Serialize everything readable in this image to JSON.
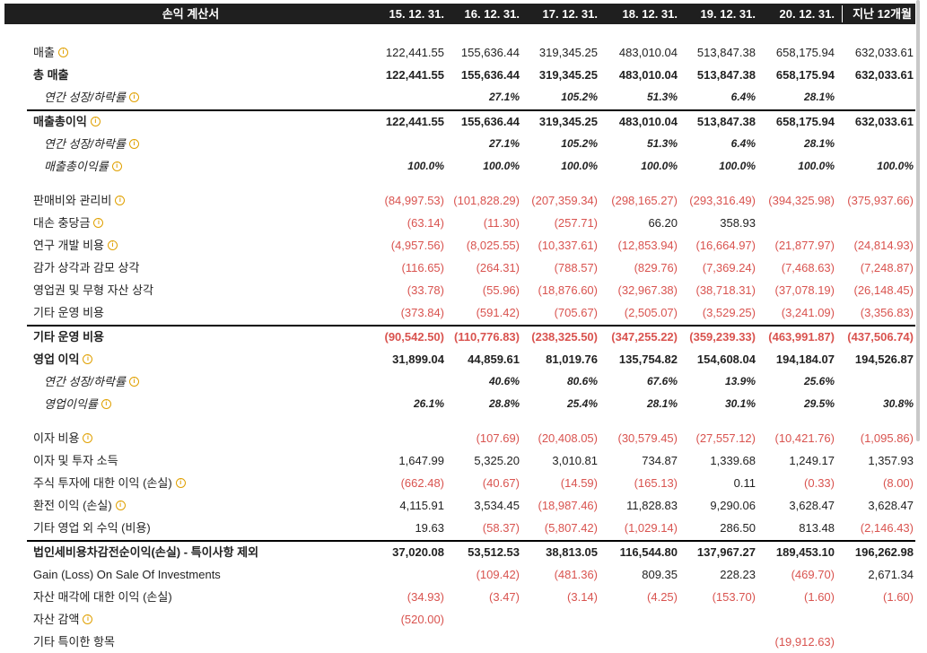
{
  "header": {
    "title": "손익 계산서",
    "columns": [
      "15. 12. 31.",
      "16. 12. 31.",
      "17. 12. 31.",
      "18. 12. 31.",
      "19. 12. 31.",
      "20. 12. 31.",
      "지난 12개월"
    ]
  },
  "rows": [
    {
      "label": "매출",
      "info": true,
      "style": "normal",
      "values": [
        "122,441.55",
        "155,636.44",
        "319,345.25",
        "483,010.04",
        "513,847.38",
        "658,175.94",
        "632,033.61"
      ]
    },
    {
      "label": "총 매출",
      "info": false,
      "style": "bold",
      "values": [
        "122,441.55",
        "155,636.44",
        "319,345.25",
        "483,010.04",
        "513,847.38",
        "658,175.94",
        "632,033.61"
      ]
    },
    {
      "label": "연간 성장/하락률",
      "info": true,
      "style": "indent",
      "values": [
        "",
        "27.1%",
        "105.2%",
        "51.3%",
        "6.4%",
        "28.1%",
        ""
      ]
    },
    {
      "label": "매출총이익",
      "info": true,
      "style": "bold-label",
      "values": [
        "122,441.55",
        "155,636.44",
        "319,345.25",
        "483,010.04",
        "513,847.38",
        "658,175.94",
        "632,033.61"
      ]
    },
    {
      "label": "연간 성장/하락률",
      "info": true,
      "style": "indent",
      "values": [
        "",
        "27.1%",
        "105.2%",
        "51.3%",
        "6.4%",
        "28.1%",
        ""
      ]
    },
    {
      "label": "매출총이익률",
      "info": true,
      "style": "indent",
      "values": [
        "100.0%",
        "100.0%",
        "100.0%",
        "100.0%",
        "100.0%",
        "100.0%",
        "100.0%"
      ]
    },
    {
      "label": "판매비와 관리비",
      "info": true,
      "style": "normal",
      "values": [
        "(84,997.53)",
        "(101,828.29)",
        "(207,359.34)",
        "(298,165.27)",
        "(293,316.49)",
        "(394,325.98)",
        "(375,937.66)"
      ]
    },
    {
      "label": "대손 충당금",
      "info": true,
      "style": "normal",
      "values": [
        "(63.14)",
        "(11.30)",
        "(257.71)",
        "66.20",
        "358.93",
        "",
        ""
      ]
    },
    {
      "label": "연구 개발 비용",
      "info": true,
      "style": "normal",
      "values": [
        "(4,957.56)",
        "(8,025.55)",
        "(10,337.61)",
        "(12,853.94)",
        "(16,664.97)",
        "(21,877.97)",
        "(24,814.93)"
      ]
    },
    {
      "label": "감가 상각과 감모 상각",
      "info": false,
      "style": "normal",
      "values": [
        "(116.65)",
        "(264.31)",
        "(788.57)",
        "(829.76)",
        "(7,369.24)",
        "(7,468.63)",
        "(7,248.87)"
      ]
    },
    {
      "label": "영업권 및 무형 자산 상각",
      "info": false,
      "style": "normal",
      "values": [
        "(33.78)",
        "(55.96)",
        "(18,876.60)",
        "(32,967.38)",
        "(38,718.31)",
        "(37,078.19)",
        "(26,148.45)"
      ]
    },
    {
      "label": "기타 운영 비용",
      "info": false,
      "style": "normal",
      "values": [
        "(373.84)",
        "(591.42)",
        "(705.67)",
        "(2,505.07)",
        "(3,529.25)",
        "(3,241.09)",
        "(3,356.83)"
      ]
    },
    {
      "label": "기타 운영 비용",
      "info": false,
      "style": "bold",
      "values": [
        "(90,542.50)",
        "(110,776.83)",
        "(238,325.50)",
        "(347,255.22)",
        "(359,239.33)",
        "(463,991.87)",
        "(437,506.74)"
      ]
    },
    {
      "label": "영업 이익",
      "info": true,
      "style": "bold",
      "values": [
        "31,899.04",
        "44,859.61",
        "81,019.76",
        "135,754.82",
        "154,608.04",
        "194,184.07",
        "194,526.87"
      ]
    },
    {
      "label": "연간 성장/하락률",
      "info": true,
      "style": "indent",
      "values": [
        "",
        "40.6%",
        "80.6%",
        "67.6%",
        "13.9%",
        "25.6%",
        ""
      ]
    },
    {
      "label": "영업이익률",
      "info": true,
      "style": "indent",
      "values": [
        "26.1%",
        "28.8%",
        "25.4%",
        "28.1%",
        "30.1%",
        "29.5%",
        "30.8%"
      ]
    },
    {
      "label": "이자 비용",
      "info": true,
      "style": "normal",
      "values": [
        "",
        "(107.69)",
        "(20,408.05)",
        "(30,579.45)",
        "(27,557.12)",
        "(10,421.76)",
        "(1,095.86)"
      ]
    },
    {
      "label": "이자 및 투자 소득",
      "info": false,
      "style": "normal",
      "values": [
        "1,647.99",
        "5,325.20",
        "3,010.81",
        "734.87",
        "1,339.68",
        "1,249.17",
        "1,357.93"
      ]
    },
    {
      "label": "주식 투자에 대한 이익 (손실)",
      "info": true,
      "style": "normal",
      "values": [
        "(662.48)",
        "(40.67)",
        "(14.59)",
        "(165.13)",
        "0.11",
        "(0.33)",
        "(8.00)"
      ]
    },
    {
      "label": "환전 이익 (손실)",
      "info": true,
      "style": "normal",
      "values": [
        "4,115.91",
        "3,534.45",
        "(18,987.46)",
        "11,828.83",
        "9,290.06",
        "3,628.47",
        "3,628.47"
      ]
    },
    {
      "label": "기타 영업 외 수익 (비용)",
      "info": false,
      "style": "normal",
      "values": [
        "19.63",
        "(58.37)",
        "(5,807.42)",
        "(1,029.14)",
        "286.50",
        "813.48",
        "(2,146.43)"
      ]
    },
    {
      "label": "법인세비용차감전순이익(손실) - 특이사항 제외",
      "info": false,
      "style": "bold",
      "values": [
        "37,020.08",
        "53,512.53",
        "38,813.05",
        "116,544.80",
        "137,967.27",
        "189,453.10",
        "196,262.98"
      ]
    },
    {
      "label": "Gain (Loss) On Sale Of Investments",
      "info": false,
      "style": "normal",
      "values": [
        "",
        "(109.42)",
        "(481.36)",
        "809.35",
        "228.23",
        "(469.70)",
        "2,671.34"
      ]
    },
    {
      "label": "자산 매각에 대한 이익 (손실)",
      "info": false,
      "style": "normal",
      "values": [
        "(34.93)",
        "(3.47)",
        "(3.14)",
        "(4.25)",
        "(153.70)",
        "(1.60)",
        "(1.60)"
      ]
    },
    {
      "label": "자산 감액",
      "info": true,
      "style": "normal",
      "values": [
        "(520.00)",
        "",
        "",
        "",
        "",
        "",
        ""
      ]
    },
    {
      "label": "기타 특이한 항목",
      "info": false,
      "style": "normal",
      "values": [
        "",
        "",
        "",
        "",
        "",
        "(19,912.63)",
        ""
      ]
    }
  ],
  "icons": {
    "info": "info-circle-icon"
  },
  "colors": {
    "negative": "#d9534f",
    "header_bg": "#1f1f1f"
  }
}
